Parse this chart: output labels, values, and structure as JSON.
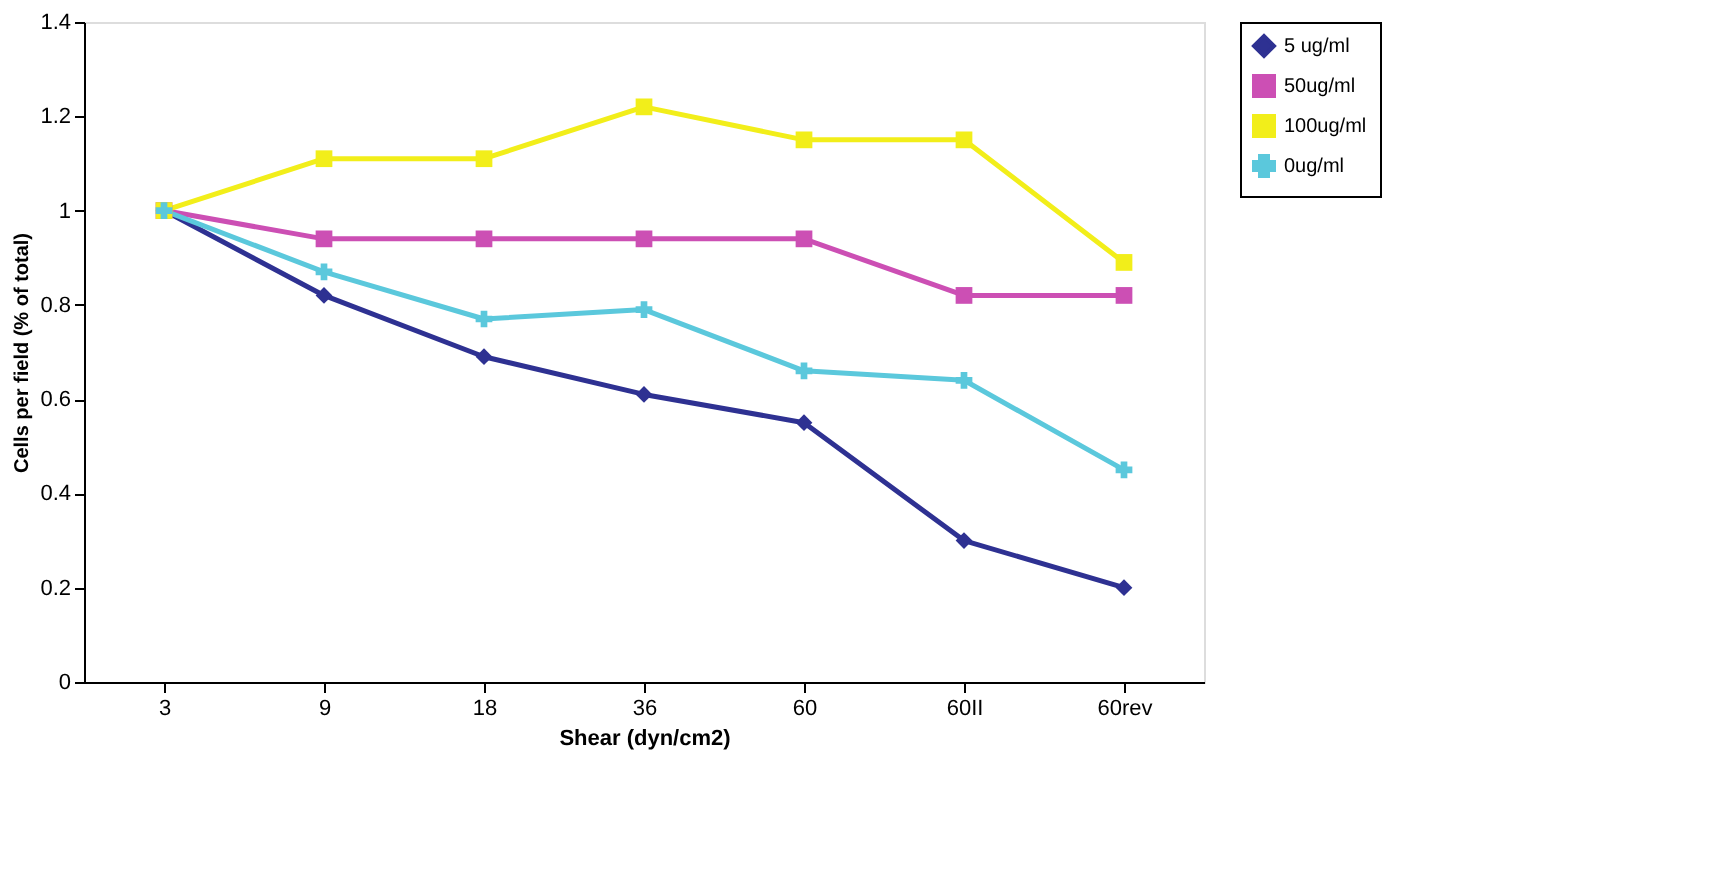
{
  "chart_data": {
    "type": "line",
    "xlabel": "Shear (dyn/cm2)",
    "ylabel": "Cells per field (% of total)",
    "categories": [
      "3",
      "9",
      "18",
      "36",
      "60",
      "60II",
      "60rev"
    ],
    "series": [
      {
        "name": "5 ug/ml",
        "color": "#2e3192",
        "marker": "diamond",
        "values": [
          1,
          0.82,
          0.69,
          0.61,
          0.55,
          0.3,
          0.2
        ]
      },
      {
        "name": "50ug/ml",
        "color": "#cc4fb4",
        "marker": "square",
        "values": [
          1,
          0.94,
          0.94,
          0.94,
          0.94,
          0.82,
          0.82
        ]
      },
      {
        "name": "100ug/ml",
        "color": "#f2ee1a",
        "marker": "square",
        "values": [
          1,
          1.11,
          1.11,
          1.22,
          1.15,
          1.15,
          0.89
        ]
      },
      {
        "name": "0ug/ml",
        "color": "#5bc8dc",
        "marker": "cross",
        "values": [
          1,
          0.87,
          0.77,
          0.79,
          0.66,
          0.64,
          0.45
        ]
      }
    ],
    "ylim": [
      0,
      1.4
    ],
    "yticks": [
      0,
      0.2,
      0.4,
      0.6,
      0.8,
      1,
      1.2,
      1.4
    ],
    "grid": false,
    "legend": "right",
    "line_style": "solid"
  }
}
